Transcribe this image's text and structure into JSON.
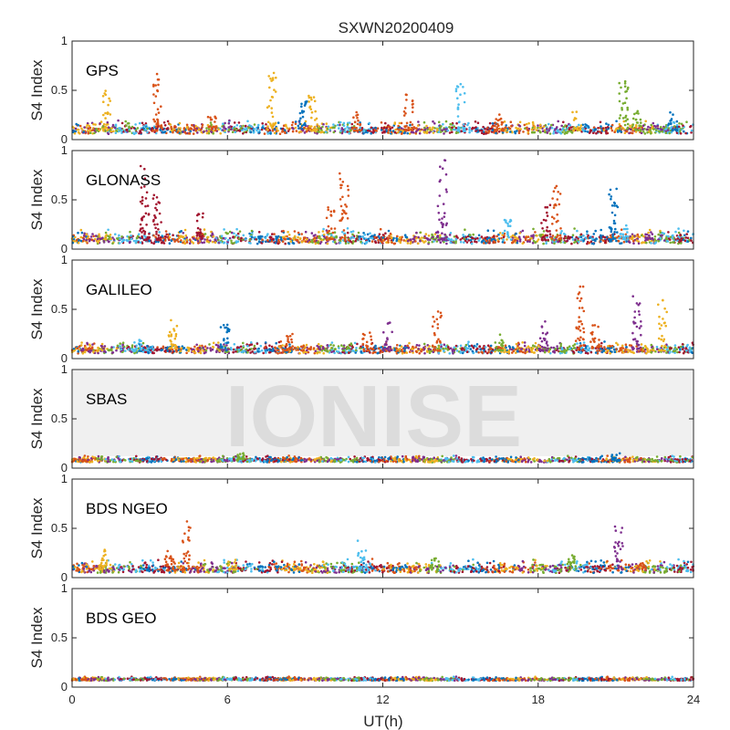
{
  "chart_data": {
    "type": "scatter",
    "title": "SXWN20200409",
    "xlabel": "UT(h)",
    "xlim": [
      0,
      24
    ],
    "xticks": [
      0,
      6,
      12,
      18,
      24
    ],
    "xtick_labels": [
      "0",
      "6",
      "12",
      "18",
      "24"
    ],
    "watermark": "IONISE",
    "series_colors": [
      "#0072BD",
      "#D95319",
      "#EDB120",
      "#7E2F8E",
      "#77AC30",
      "#4DBEEE",
      "#A2142F"
    ],
    "panels": [
      {
        "name": "GPS",
        "ylabel": "S4 Index",
        "ylim": [
          0,
          1
        ],
        "yticks": [
          0,
          0.5,
          1
        ],
        "ytick_labels": [
          "0",
          "0.5",
          "1"
        ],
        "baseline": 0.09,
        "noise": 0.04,
        "spikes": [
          {
            "t": 1.3,
            "peak": 0.5,
            "c": 2
          },
          {
            "t": 3.3,
            "peak": 0.72,
            "c": 1
          },
          {
            "t": 5.4,
            "peak": 0.25,
            "c": 1
          },
          {
            "t": 7.7,
            "peak": 0.7,
            "c": 2
          },
          {
            "t": 8.9,
            "peak": 0.4,
            "c": 0
          },
          {
            "t": 9.3,
            "peak": 0.45,
            "c": 2
          },
          {
            "t": 11.0,
            "peak": 0.3,
            "c": 1
          },
          {
            "t": 13.0,
            "peak": 0.5,
            "c": 1
          },
          {
            "t": 15.0,
            "peak": 0.57,
            "c": 5
          },
          {
            "t": 16.5,
            "peak": 0.28,
            "c": 1
          },
          {
            "t": 19.5,
            "peak": 0.3,
            "c": 2
          },
          {
            "t": 21.3,
            "peak": 0.65,
            "c": 4
          },
          {
            "t": 21.8,
            "peak": 0.35,
            "c": 4
          },
          {
            "t": 23.2,
            "peak": 0.28,
            "c": 0
          }
        ]
      },
      {
        "name": "GLONASS",
        "ylabel": "S4 Index",
        "ylim": [
          0,
          1
        ],
        "yticks": [
          0,
          0.5,
          1
        ],
        "ytick_labels": [
          "0",
          "0.5",
          "1"
        ],
        "baseline": 0.09,
        "noise": 0.045,
        "spikes": [
          {
            "t": 2.8,
            "peak": 0.87,
            "c": 6
          },
          {
            "t": 3.3,
            "peak": 0.55,
            "c": 6
          },
          {
            "t": 4.9,
            "peak": 0.38,
            "c": 6
          },
          {
            "t": 10.5,
            "peak": 0.78,
            "c": 1
          },
          {
            "t": 10.0,
            "peak": 0.45,
            "c": 1
          },
          {
            "t": 14.3,
            "peak": 0.92,
            "c": 3
          },
          {
            "t": 16.8,
            "peak": 0.3,
            "c": 5
          },
          {
            "t": 18.3,
            "peak": 0.45,
            "c": 6
          },
          {
            "t": 18.7,
            "peak": 0.65,
            "c": 1
          },
          {
            "t": 20.9,
            "peak": 0.62,
            "c": 0
          },
          {
            "t": 21.3,
            "peak": 0.3,
            "c": 5
          },
          {
            "t": 22.3,
            "peak": 0.2,
            "c": 3
          }
        ]
      },
      {
        "name": "GALILEO",
        "ylabel": "S4 Index",
        "ylim": [
          0,
          1
        ],
        "yticks": [
          0,
          0.5,
          1
        ],
        "ytick_labels": [
          "0",
          "0.5",
          "1"
        ],
        "baseline": 0.08,
        "noise": 0.035,
        "spikes": [
          {
            "t": 2.5,
            "peak": 0.2,
            "c": 5
          },
          {
            "t": 3.9,
            "peak": 0.4,
            "c": 2
          },
          {
            "t": 5.9,
            "peak": 0.35,
            "c": 0
          },
          {
            "t": 8.4,
            "peak": 0.25,
            "c": 1
          },
          {
            "t": 11.4,
            "peak": 0.28,
            "c": 1
          },
          {
            "t": 12.2,
            "peak": 0.37,
            "c": 3
          },
          {
            "t": 14.1,
            "peak": 0.48,
            "c": 1
          },
          {
            "t": 16.5,
            "peak": 0.25,
            "c": 4
          },
          {
            "t": 18.2,
            "peak": 0.45,
            "c": 3
          },
          {
            "t": 19.6,
            "peak": 0.75,
            "c": 1
          },
          {
            "t": 20.2,
            "peak": 0.38,
            "c": 1
          },
          {
            "t": 21.8,
            "peak": 0.65,
            "c": 3
          },
          {
            "t": 22.8,
            "peak": 0.6,
            "c": 2
          }
        ]
      },
      {
        "name": "SBAS",
        "ylabel": "S4 Index",
        "ylim": [
          0,
          1
        ],
        "yticks": [
          0,
          0.5,
          1
        ],
        "ytick_labels": [
          "0",
          "0.5",
          "1"
        ],
        "baseline": 0.075,
        "noise": 0.02,
        "spikes": [
          {
            "t": 6.5,
            "peak": 0.17,
            "c": 4
          },
          {
            "t": 21.0,
            "peak": 0.15,
            "c": 0
          }
        ]
      },
      {
        "name": "BDS NGEO",
        "ylabel": "S4 Index",
        "ylim": [
          0,
          1
        ],
        "yticks": [
          0,
          0.5,
          1
        ],
        "ytick_labels": [
          "0",
          "0.5",
          "1"
        ],
        "baseline": 0.08,
        "noise": 0.04,
        "spikes": [
          {
            "t": 1.2,
            "peak": 0.3,
            "c": 2
          },
          {
            "t": 3.8,
            "peak": 0.28,
            "c": 1
          },
          {
            "t": 4.4,
            "peak": 0.62,
            "c": 1
          },
          {
            "t": 6.2,
            "peak": 0.18,
            "c": 2
          },
          {
            "t": 11.2,
            "peak": 0.4,
            "c": 5
          },
          {
            "t": 14.0,
            "peak": 0.2,
            "c": 4
          },
          {
            "t": 19.3,
            "peak": 0.25,
            "c": 4
          },
          {
            "t": 21.1,
            "peak": 0.57,
            "c": 3
          },
          {
            "t": 22.0,
            "peak": 0.15,
            "c": 1
          }
        ]
      },
      {
        "name": "BDS GEO",
        "ylabel": "S4 Index",
        "ylim": [
          0,
          1
        ],
        "yticks": [
          0,
          0.5,
          1
        ],
        "ytick_labels": [
          "0",
          "0.5",
          "1"
        ],
        "baseline": 0.075,
        "noise": 0.012,
        "spikes": []
      }
    ]
  }
}
